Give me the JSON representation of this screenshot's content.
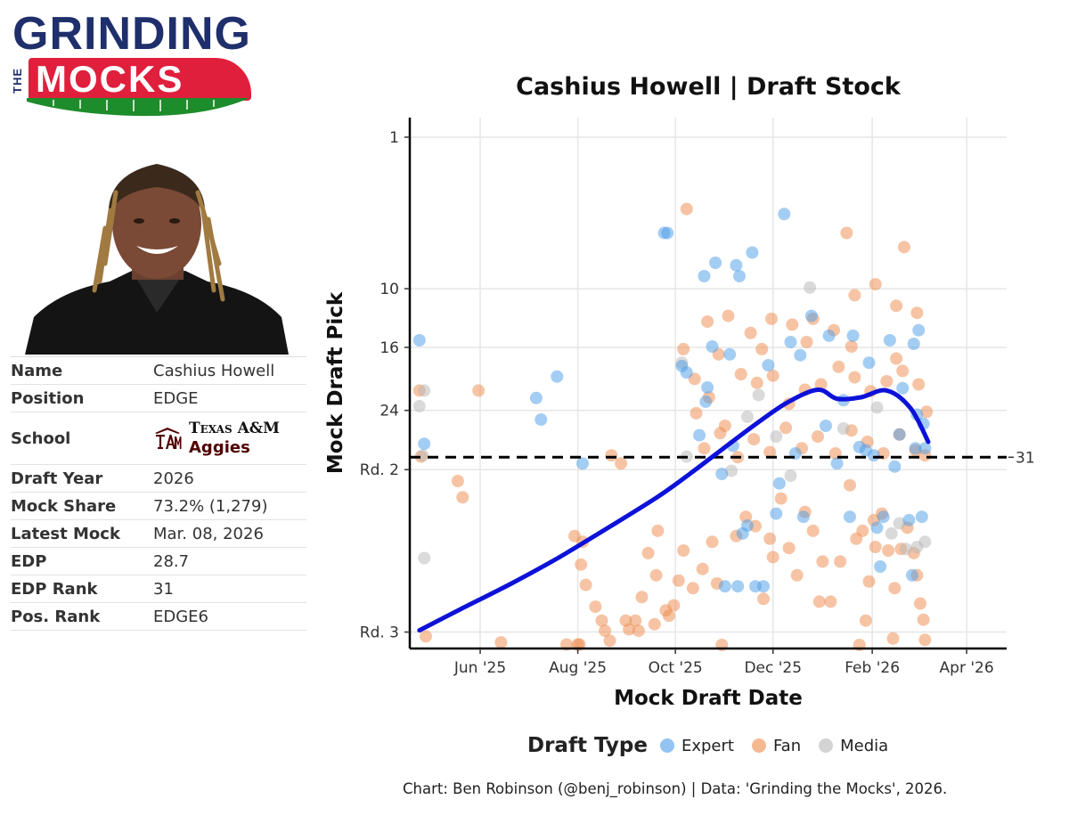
{
  "logo": {
    "line1": "GRINDING",
    "line2": "THE",
    "line3": "MOCKS"
  },
  "player": {
    "rows": [
      {
        "key": "Name",
        "value": "Cashius Howell"
      },
      {
        "key": "Position",
        "value": "EDGE"
      },
      {
        "key": "School",
        "school_name": "Texas A&M",
        "school_nickname": "Aggies"
      },
      {
        "key": "Draft Year",
        "value": "2026"
      },
      {
        "key": "Mock Share",
        "value": "73.2% (1,279)"
      },
      {
        "key": "Latest Mock",
        "value": "Mar. 08, 2026"
      },
      {
        "key": "EDP",
        "value": "28.7"
      },
      {
        "key": "EDP Rank",
        "value": "31"
      },
      {
        "key": "Pos. Rank",
        "value": "EDGE6"
      }
    ],
    "school_logo_text": "ATM",
    "school_color": "#500000"
  },
  "chart_data": {
    "type": "scatter",
    "title": "Cashius Howell | Draft Stock",
    "xlabel": "Mock Draft Date",
    "ylabel": "Mock Draft Pick",
    "x_tick_labels": [
      {
        "date": "2025-06-01",
        "label": "Jun '25"
      },
      {
        "date": "2025-08-01",
        "label": "Aug '25"
      },
      {
        "date": "2025-10-01",
        "label": "Oct '25"
      },
      {
        "date": "2025-12-01",
        "label": "Dec '25"
      },
      {
        "date": "2026-02-01",
        "label": "Feb '26"
      },
      {
        "date": "2026-04-01",
        "label": "Apr '26"
      }
    ],
    "xlim": [
      "2025-04-18",
      "2026-04-26"
    ],
    "y_axis_scale": "sqrt",
    "y_reversed": true,
    "y_tick_labels": [
      {
        "pick": 1,
        "label": "1"
      },
      {
        "pick": 10,
        "label": "10"
      },
      {
        "pick": 16,
        "label": "16"
      },
      {
        "pick": 24,
        "label": "24"
      },
      {
        "pick": 33,
        "label": "Rd. 2"
      },
      {
        "pick": 65,
        "label": "Rd. 3"
      }
    ],
    "ylim": [
      1,
      68
    ],
    "reference_line": {
      "pick": 31,
      "label": "31",
      "style": "dashed"
    },
    "grid": true,
    "legend": {
      "title": "Draft Type",
      "position": "bottom",
      "entries": [
        {
          "name": "Expert",
          "color": "#4a9be8"
        },
        {
          "name": "Fan",
          "color": "#ee8a4a"
        },
        {
          "name": "Media",
          "color": "#b5b5b5"
        }
      ]
    },
    "trend": {
      "color": "#0d12d8",
      "points": [
        [
          "2025-04-24",
          64.6
        ],
        [
          "2025-05-20",
          59.8
        ],
        [
          "2025-06-20",
          54.4
        ],
        [
          "2025-07-20",
          49.0
        ],
        [
          "2025-08-20",
          43.2
        ],
        [
          "2025-09-20",
          37.6
        ],
        [
          "2025-10-10",
          33.7
        ],
        [
          "2025-10-30",
          29.8
        ],
        [
          "2025-11-20",
          26.0
        ],
        [
          "2025-12-10",
          22.9
        ],
        [
          "2025-12-29",
          21.2
        ],
        [
          "2026-01-10",
          22.4
        ],
        [
          "2026-01-25",
          22.2
        ],
        [
          "2026-02-10",
          21.3
        ],
        [
          "2026-02-25",
          23.7
        ],
        [
          "2026-03-08",
          28.6
        ]
      ]
    },
    "series": [
      {
        "name": "Expert",
        "points": [
          [
            "2025-04-24",
            15.2
          ],
          [
            "2025-04-27",
            28.9
          ],
          [
            "2025-07-06",
            22.3
          ],
          [
            "2025-07-19",
            19.5
          ],
          [
            "2025-07-09",
            25.3
          ],
          [
            "2025-08-04",
            32.0
          ],
          [
            "2025-09-24",
            5.6
          ],
          [
            "2025-09-26",
            5.6
          ],
          [
            "2025-10-08",
            19.0
          ],
          [
            "2025-10-19",
            8.9
          ],
          [
            "2025-10-26",
            7.8
          ],
          [
            "2025-11-08",
            8.0
          ],
          [
            "2025-11-10",
            8.9
          ],
          [
            "2025-11-18",
            7.0
          ],
          [
            "2025-12-08",
            4.4
          ],
          [
            "2025-10-05",
            18.2
          ],
          [
            "2025-10-21",
            20.9
          ],
          [
            "2025-12-03",
            40.6
          ],
          [
            "2025-11-15",
            42.8
          ],
          [
            "2026-01-18",
            41.2
          ],
          [
            "2025-12-20",
            41.2
          ],
          [
            "2026-02-04",
            43.2
          ],
          [
            "2026-02-08",
            41.2
          ],
          [
            "2025-11-01",
            54.9
          ],
          [
            "2025-11-09",
            54.9
          ],
          [
            "2025-11-20",
            54.9
          ],
          [
            "2025-11-25",
            54.9
          ],
          [
            "2025-11-12",
            44.3
          ],
          [
            "2026-02-06",
            50.8
          ],
          [
            "2026-02-24",
            41.8
          ],
          [
            "2025-12-25",
            12.6
          ],
          [
            "2026-01-05",
            14.7
          ],
          [
            "2026-01-20",
            14.7
          ],
          [
            "2026-01-30",
            17.8
          ],
          [
            "2026-02-12",
            15.2
          ],
          [
            "2026-02-20",
            21.0
          ],
          [
            "2026-03-02",
            14.1
          ],
          [
            "2025-10-16",
            27.6
          ],
          [
            "2025-10-20",
            22.8
          ],
          [
            "2025-11-06",
            29.2
          ],
          [
            "2025-12-15",
            30.4
          ],
          [
            "2026-01-10",
            32.0
          ],
          [
            "2026-01-24",
            29.4
          ],
          [
            "2026-02-15",
            32.5
          ],
          [
            "2026-02-28",
            29.6
          ],
          [
            "2026-03-05",
            25.9
          ],
          [
            "2026-03-04",
            41.2
          ],
          [
            "2026-03-06",
            29.6
          ],
          [
            "2025-11-04",
            16.8
          ],
          [
            "2025-11-28",
            18.1
          ],
          [
            "2025-12-12",
            15.4
          ],
          [
            "2026-01-14",
            22.6
          ],
          [
            "2026-02-02",
            30.7
          ],
          [
            "2026-02-26",
            52.6
          ],
          [
            "2026-02-27",
            15.6
          ],
          [
            "2025-10-30",
            33.7
          ],
          [
            "2025-12-05",
            35.3
          ],
          [
            "2026-01-28",
            29.9
          ],
          [
            "2026-03-01",
            24.6
          ],
          [
            "2025-10-24",
            15.9
          ],
          [
            "2025-12-18",
            16.9
          ],
          [
            "2026-01-03",
            26.2
          ],
          [
            "2026-02-18",
            27.5
          ]
        ]
      },
      {
        "name": "Fan",
        "points": [
          [
            "2025-04-24",
            21.3
          ],
          [
            "2025-04-25",
            30.9
          ],
          [
            "2025-04-28",
            66.0
          ],
          [
            "2025-05-18",
            34.9
          ],
          [
            "2025-05-21",
            37.7
          ],
          [
            "2025-05-31",
            21.3
          ],
          [
            "2025-06-14",
            67.4
          ],
          [
            "2025-07-25",
            67.9
          ],
          [
            "2025-08-01",
            67.9
          ],
          [
            "2025-08-02",
            67.9
          ],
          [
            "2025-08-04",
            45.9
          ],
          [
            "2025-08-03",
            50.4
          ],
          [
            "2025-08-06",
            54.6
          ],
          [
            "2025-08-12",
            59.3
          ],
          [
            "2025-07-30",
            44.8
          ],
          [
            "2025-08-16",
            62.4
          ],
          [
            "2025-08-18",
            64.7
          ],
          [
            "2025-08-21",
            67.0
          ],
          [
            "2025-08-31",
            62.4
          ],
          [
            "2025-09-06",
            62.4
          ],
          [
            "2025-09-10",
            57.2
          ],
          [
            "2025-09-14",
            48.1
          ],
          [
            "2025-09-20",
            43.8
          ],
          [
            "2025-09-02",
            64.4
          ],
          [
            "2025-09-08",
            64.7
          ],
          [
            "2025-09-25",
            60.1
          ],
          [
            "2025-09-30",
            59.0
          ],
          [
            "2025-10-03",
            53.7
          ],
          [
            "2025-10-06",
            47.6
          ],
          [
            "2025-10-12",
            55.3
          ],
          [
            "2025-10-18",
            51.3
          ],
          [
            "2025-10-24",
            45.9
          ],
          [
            "2025-10-30",
            68.0
          ],
          [
            "2025-09-18",
            63.2
          ],
          [
            "2025-09-27",
            61.3
          ],
          [
            "2025-09-19",
            52.6
          ],
          [
            "2025-08-28",
            32.0
          ],
          [
            "2025-08-22",
            30.7
          ],
          [
            "2025-10-08",
            4.1
          ],
          [
            "2025-11-08",
            44.8
          ],
          [
            "2025-11-20",
            42.9
          ],
          [
            "2025-11-25",
            57.6
          ],
          [
            "2025-12-01",
            48.9
          ],
          [
            "2025-12-06",
            37.9
          ],
          [
            "2025-12-11",
            47.1
          ],
          [
            "2025-12-16",
            52.6
          ],
          [
            "2025-12-21",
            40.3
          ],
          [
            "2025-12-26",
            43.8
          ],
          [
            "2026-01-01",
            49.8
          ],
          [
            "2026-01-06",
            58.2
          ],
          [
            "2026-01-12",
            49.8
          ],
          [
            "2026-01-18",
            35.6
          ],
          [
            "2026-01-22",
            45.3
          ],
          [
            "2026-01-26",
            43.8
          ],
          [
            "2026-01-30",
            53.9
          ],
          [
            "2026-02-03",
            46.9
          ],
          [
            "2026-02-07",
            40.6
          ],
          [
            "2026-02-11",
            47.6
          ],
          [
            "2026-02-15",
            55.3
          ],
          [
            "2026-02-19",
            47.3
          ],
          [
            "2026-02-23",
            43.2
          ],
          [
            "2026-02-27",
            48.1
          ],
          [
            "2026-03-01",
            52.6
          ],
          [
            "2026-03-03",
            58.6
          ],
          [
            "2026-03-05",
            62.2
          ],
          [
            "2026-03-06",
            66.8
          ],
          [
            "2025-12-30",
            58.2
          ],
          [
            "2026-01-28",
            62.4
          ],
          [
            "2026-02-14",
            66.5
          ],
          [
            "2026-01-24",
            68.0
          ],
          [
            "2026-02-02",
            41.8
          ],
          [
            "2025-11-14",
            41.2
          ],
          [
            "2025-11-29",
            45.3
          ],
          [
            "2025-10-27",
            54.3
          ],
          [
            "2026-01-16",
            5.6
          ],
          [
            "2026-02-21",
            6.6
          ],
          [
            "2025-10-13",
            19.8
          ],
          [
            "2025-10-21",
            13.2
          ],
          [
            "2025-11-03",
            12.6
          ],
          [
            "2025-11-17",
            14.4
          ],
          [
            "2025-11-30",
            12.9
          ],
          [
            "2025-12-13",
            13.5
          ],
          [
            "2025-12-26",
            12.9
          ],
          [
            "2026-01-08",
            14.1
          ],
          [
            "2026-01-21",
            10.6
          ],
          [
            "2026-02-03",
            9.6
          ],
          [
            "2026-02-16",
            11.6
          ],
          [
            "2026-03-01",
            12.3
          ],
          [
            "2025-10-14",
            24.4
          ],
          [
            "2025-10-22",
            22.2
          ],
          [
            "2025-11-01",
            26.2
          ],
          [
            "2025-11-11",
            19.2
          ],
          [
            "2025-11-21",
            20.3
          ],
          [
            "2025-12-01",
            19.4
          ],
          [
            "2025-12-11",
            23.1
          ],
          [
            "2025-12-21",
            21.2
          ],
          [
            "2025-12-31",
            20.5
          ],
          [
            "2026-01-11",
            18.3
          ],
          [
            "2026-01-21",
            19.6
          ],
          [
            "2026-01-31",
            21.4
          ],
          [
            "2026-02-10",
            20.1
          ],
          [
            "2026-02-20",
            18.8
          ],
          [
            "2026-03-02",
            20.5
          ],
          [
            "2026-03-07",
            24.2
          ],
          [
            "2025-10-19",
            29.6
          ],
          [
            "2025-10-29",
            27.3
          ],
          [
            "2025-11-09",
            31.0
          ],
          [
            "2025-11-19",
            28.2
          ],
          [
            "2025-11-29",
            30.2
          ],
          [
            "2025-12-09",
            26.5
          ],
          [
            "2025-12-19",
            29.6
          ],
          [
            "2025-12-29",
            27.8
          ],
          [
            "2026-01-09",
            30.4
          ],
          [
            "2026-01-19",
            26.9
          ],
          [
            "2026-01-29",
            28.6
          ],
          [
            "2026-02-08",
            30.4
          ],
          [
            "2026-02-18",
            27.5
          ],
          [
            "2026-02-28",
            29.9
          ],
          [
            "2026-03-06",
            30.7
          ],
          [
            "2025-10-06",
            16.2
          ],
          [
            "2025-10-28",
            16.8
          ],
          [
            "2025-11-24",
            16.2
          ],
          [
            "2025-12-22",
            15.4
          ],
          [
            "2026-01-19",
            15.9
          ],
          [
            "2026-02-16",
            17.3
          ]
        ]
      },
      {
        "name": "Media",
        "points": [
          [
            "2025-04-24",
            23.4
          ],
          [
            "2025-04-27",
            21.3
          ],
          [
            "2025-04-26",
            30.7
          ],
          [
            "2025-04-27",
            49.1
          ],
          [
            "2025-10-05",
            17.8
          ],
          [
            "2025-10-08",
            30.9
          ],
          [
            "2025-11-05",
            33.2
          ],
          [
            "2025-12-12",
            34.0
          ],
          [
            "2025-12-24",
            9.9
          ],
          [
            "2026-02-13",
            44.3
          ],
          [
            "2026-02-18",
            42.4
          ],
          [
            "2026-02-22",
            47.3
          ],
          [
            "2026-03-01",
            46.9
          ],
          [
            "2026-03-06",
            45.9
          ],
          [
            "2025-11-22",
            21.9
          ],
          [
            "2026-01-14",
            26.6
          ],
          [
            "2026-02-04",
            23.6
          ],
          [
            "2025-12-03",
            27.8
          ],
          [
            "2025-11-15",
            24.9
          ]
        ]
      }
    ]
  },
  "caption": "Chart: Ben Robinson (@benj_robinson) | Data: 'Grinding the Mocks', 2026."
}
